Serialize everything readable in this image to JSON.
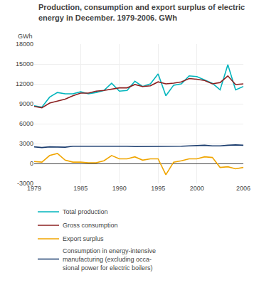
{
  "chart_data": {
    "type": "line",
    "title": "Production, consumption and export surplus of electric\nenergy in December. 1979-2006. GWh",
    "ylabel": "GWh",
    "x": [
      1979,
      1980,
      1981,
      1982,
      1983,
      1984,
      1985,
      1986,
      1987,
      1988,
      1989,
      1990,
      1991,
      1992,
      1993,
      1994,
      1995,
      1996,
      1997,
      1998,
      1999,
      2000,
      2001,
      2002,
      2003,
      2004,
      2005,
      2006
    ],
    "series": [
      {
        "name": "Total production",
        "color": "#00b5bd",
        "values": [
          8700,
          8500,
          10000,
          10700,
          10500,
          10500,
          10800,
          10500,
          10700,
          11000,
          12100,
          10900,
          11000,
          12400,
          11600,
          12000,
          13500,
          10200,
          11800,
          12000,
          13200,
          13100,
          12600,
          12100,
          11100,
          14900,
          11100,
          11600
        ]
      },
      {
        "name": "Gross consumption",
        "color": "#8b2020",
        "values": [
          8600,
          8400,
          9100,
          9400,
          9700,
          10200,
          10600,
          10600,
          10900,
          11000,
          11200,
          11400,
          11400,
          11900,
          11600,
          11700,
          12300,
          12000,
          12100,
          12300,
          12800,
          12700,
          12500,
          12000,
          12200,
          13200,
          11900,
          12000
        ]
      },
      {
        "name": "Export surplus",
        "color": "#f0a500",
        "values": [
          300,
          200,
          1200,
          1500,
          500,
          200,
          200,
          100,
          100,
          400,
          1200,
          700,
          700,
          1000,
          500,
          700,
          700,
          -1700,
          200,
          400,
          700,
          700,
          1000,
          900,
          -600,
          -500,
          -800,
          -600
        ]
      },
      {
        "name": "Consumption in energy-intensive\nmanufacturing (excluding occa-\nsional power for electric boilers)",
        "color": "#1a3c6e",
        "values": [
          2500,
          2400,
          2500,
          2450,
          2450,
          2600,
          2600,
          2600,
          2600,
          2650,
          2600,
          2600,
          2600,
          2550,
          2550,
          2600,
          2600,
          2550,
          2600,
          2600,
          2650,
          2700,
          2750,
          2650,
          2650,
          2750,
          2800,
          2750
        ]
      }
    ],
    "xlim": [
      1979,
      2006
    ],
    "xticks": [
      1979,
      1985,
      1990,
      1995,
      2000,
      2006
    ],
    "ylim": [
      -3000,
      18000
    ],
    "yticks": [
      -3000,
      0,
      3000,
      6000,
      9000,
      12000,
      15000,
      18000
    ],
    "grid": true,
    "legend": "bottom"
  }
}
